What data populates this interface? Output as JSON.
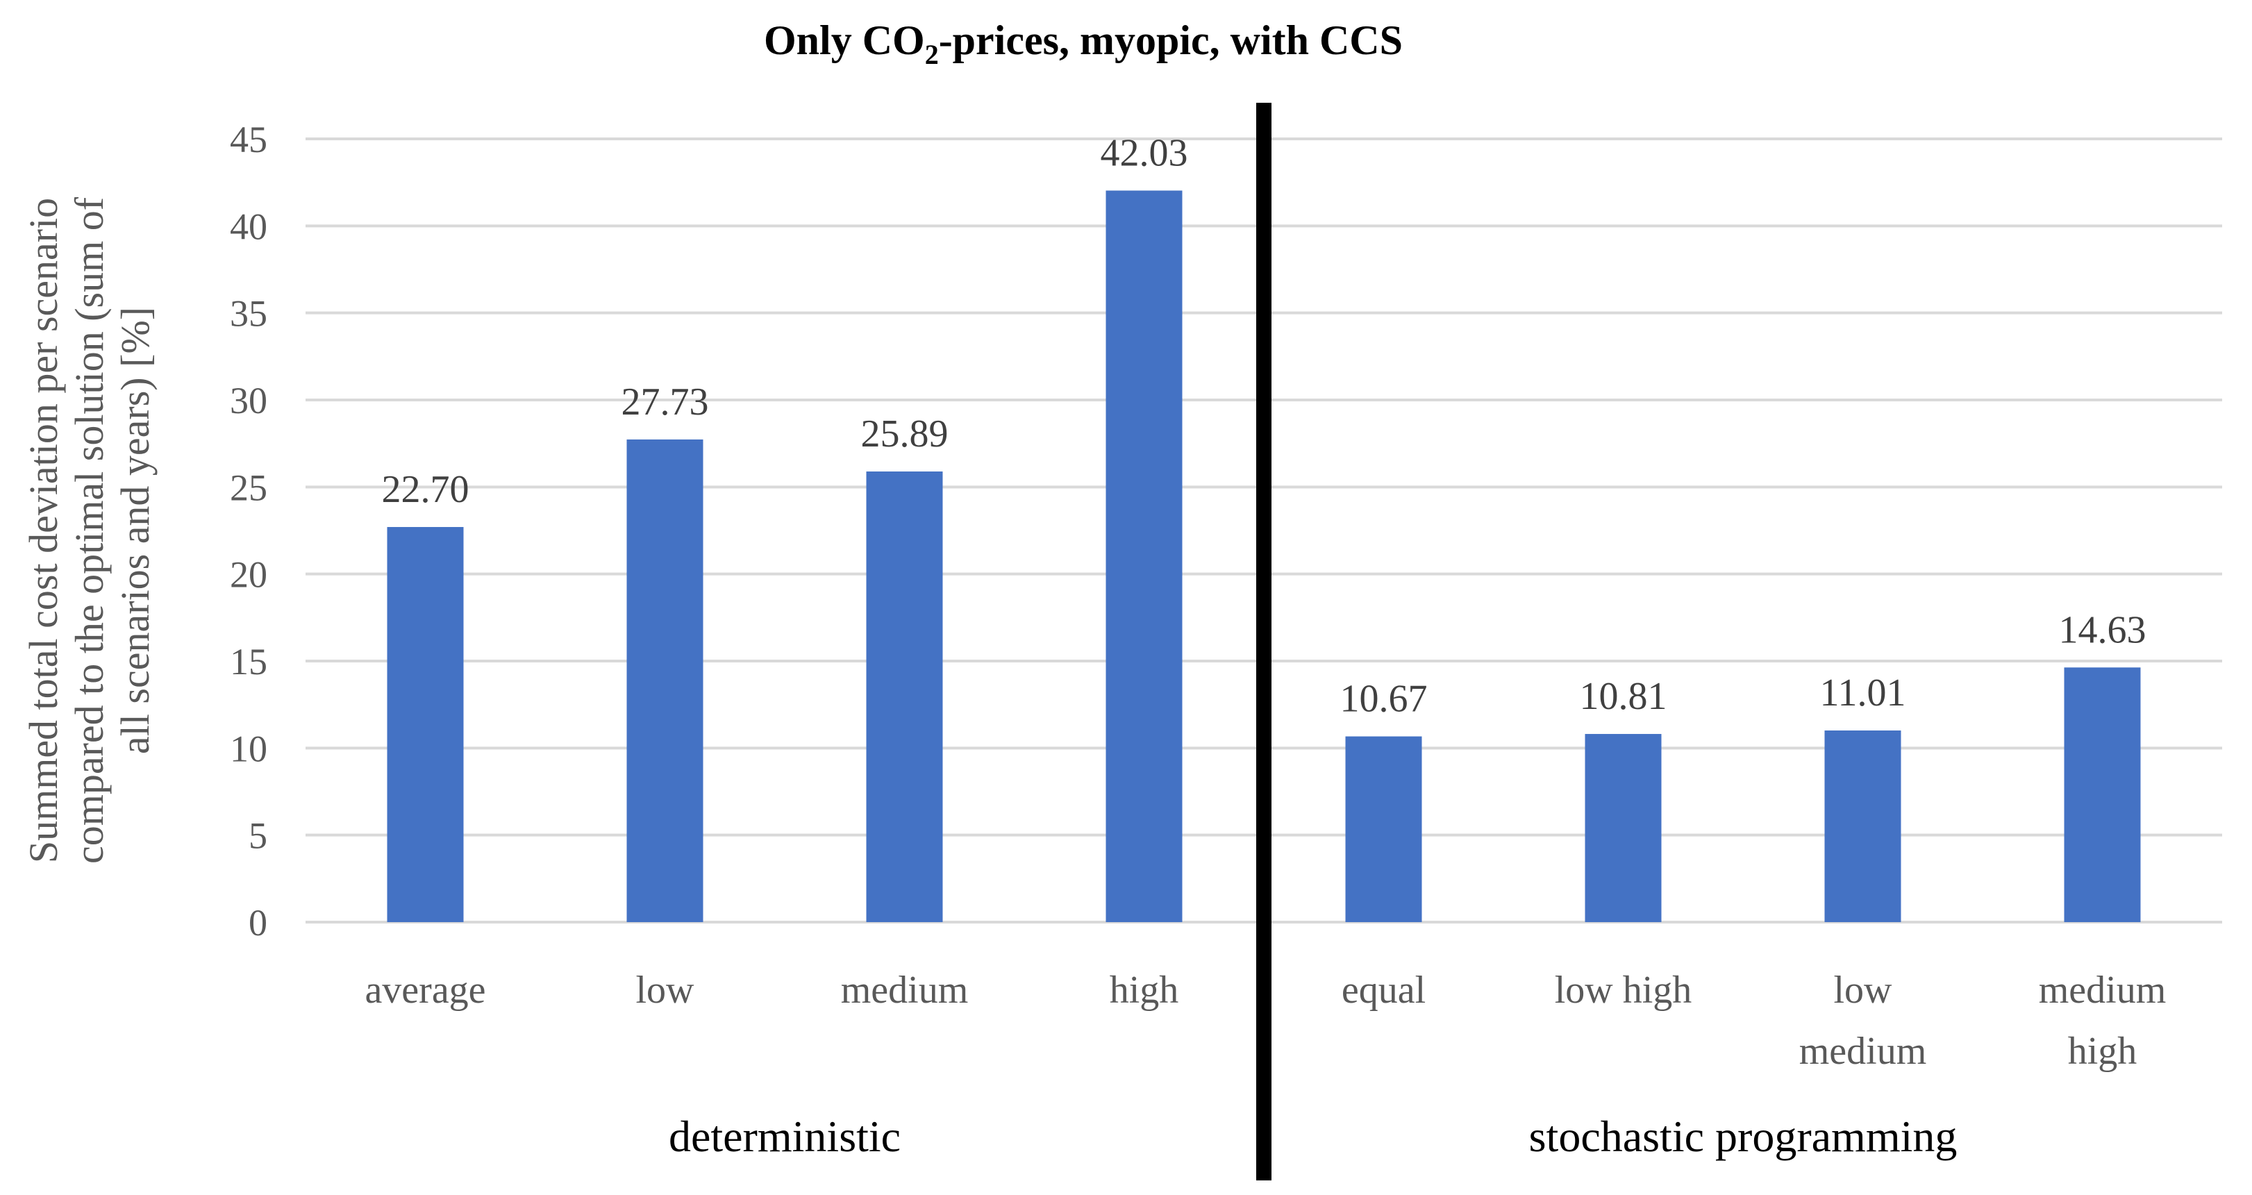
{
  "chart_data": {
    "type": "bar",
    "title_parts": [
      "Only CO",
      "2",
      "-prices, myopic, with CCS"
    ],
    "ylabel_lines": [
      "Summed total cost deviation per scenario",
      "compared to the optimal solution (sum of",
      "all scenarios and years) [%]"
    ],
    "ylim": [
      0,
      45
    ],
    "yticks": [
      0,
      5,
      10,
      15,
      20,
      25,
      30,
      35,
      40,
      45
    ],
    "grid": true,
    "categories": [
      {
        "label_lines": [
          "average"
        ],
        "value": 22.7,
        "value_label": "22.70",
        "group": 0
      },
      {
        "label_lines": [
          "low"
        ],
        "value": 27.73,
        "value_label": "27.73",
        "group": 0
      },
      {
        "label_lines": [
          "medium"
        ],
        "value": 25.89,
        "value_label": "25.89",
        "group": 0
      },
      {
        "label_lines": [
          "high"
        ],
        "value": 42.03,
        "value_label": "42.03",
        "group": 0
      },
      {
        "label_lines": [
          "equal"
        ],
        "value": 10.67,
        "value_label": "10.67",
        "group": 1
      },
      {
        "label_lines": [
          "low high"
        ],
        "value": 10.81,
        "value_label": "10.81",
        "group": 1
      },
      {
        "label_lines": [
          "low",
          "medium"
        ],
        "value": 11.01,
        "value_label": "11.01",
        "group": 1
      },
      {
        "label_lines": [
          "medium",
          "high"
        ],
        "value": 14.63,
        "value_label": "14.63",
        "group": 1
      }
    ],
    "groups": [
      "deterministic",
      "stochastic programming"
    ],
    "bar_color": "#4472c4",
    "divider_color": "#000000"
  }
}
